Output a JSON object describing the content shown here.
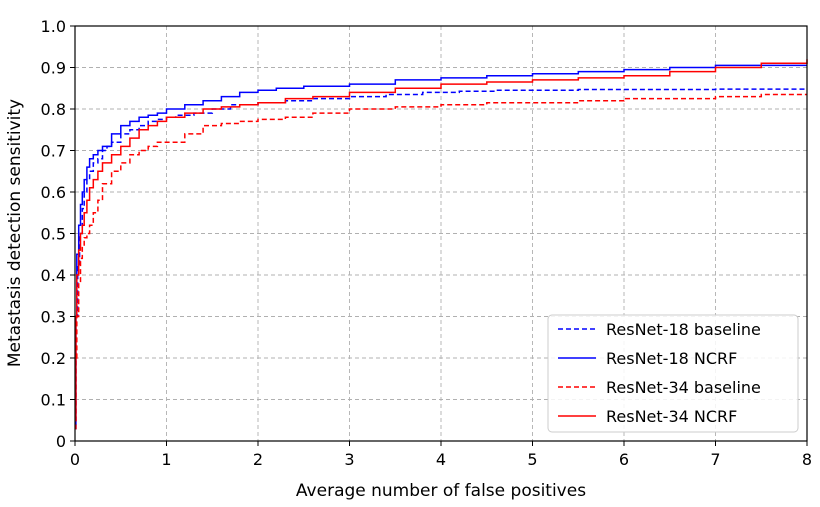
{
  "chart_data": {
    "type": "line",
    "title": "",
    "xlabel": "Average number of false positives",
    "ylabel": "Metastasis detection sensitivity",
    "xlim": [
      0,
      8
    ],
    "ylim": [
      0,
      1.0
    ],
    "xticks": [
      0,
      1,
      2,
      3,
      4,
      5,
      6,
      7,
      8
    ],
    "xtick_labels": [
      "0",
      "1",
      "2",
      "3",
      "4",
      "5",
      "6",
      "7",
      "8"
    ],
    "yticks": [
      0,
      0.1,
      0.2,
      0.3,
      0.4,
      0.5,
      0.6,
      0.7,
      0.8,
      0.9,
      1.0
    ],
    "ytick_labels": [
      "0",
      "0.1",
      "0.2",
      "0.3",
      "0.4",
      "0.5",
      "0.6",
      "0.7",
      "0.8",
      "0.9",
      "1.0"
    ],
    "grid": true,
    "legend_position": "lower-right",
    "series": [
      {
        "name": "ResNet-18 baseline",
        "color": "#0000ff",
        "style": "dashed",
        "x": [
          0,
          0.01,
          0.03,
          0.05,
          0.08,
          0.1,
          0.13,
          0.16,
          0.2,
          0.25,
          0.3,
          0.35,
          0.4,
          0.5,
          0.6,
          0.7,
          0.8,
          0.9,
          1.0,
          1.1,
          1.3,
          1.5,
          1.7,
          2.0,
          2.3,
          2.6,
          3.0,
          3.4,
          3.8,
          4.2,
          4.6,
          5.0,
          5.5,
          6.0,
          6.5,
          7.0,
          7.5,
          8.0
        ],
        "y": [
          0.03,
          0.3,
          0.42,
          0.5,
          0.56,
          0.6,
          0.63,
          0.65,
          0.67,
          0.68,
          0.7,
          0.71,
          0.72,
          0.74,
          0.75,
          0.76,
          0.77,
          0.775,
          0.78,
          0.785,
          0.79,
          0.8,
          0.81,
          0.815,
          0.82,
          0.825,
          0.83,
          0.835,
          0.84,
          0.843,
          0.845,
          0.845,
          0.847,
          0.847,
          0.847,
          0.848,
          0.848,
          0.848
        ]
      },
      {
        "name": "ResNet-18 NCRF",
        "color": "#0000ff",
        "style": "solid",
        "x": [
          0,
          0.01,
          0.02,
          0.04,
          0.06,
          0.08,
          0.1,
          0.13,
          0.16,
          0.2,
          0.25,
          0.3,
          0.4,
          0.5,
          0.6,
          0.7,
          0.8,
          0.9,
          1.0,
          1.2,
          1.4,
          1.6,
          1.8,
          2.0,
          2.2,
          2.5,
          3.0,
          3.5,
          4.0,
          4.5,
          5.0,
          5.5,
          6.0,
          6.5,
          7.0,
          7.5,
          8.0
        ],
        "y": [
          0.04,
          0.3,
          0.45,
          0.52,
          0.57,
          0.6,
          0.63,
          0.66,
          0.68,
          0.69,
          0.7,
          0.71,
          0.74,
          0.76,
          0.77,
          0.78,
          0.785,
          0.79,
          0.8,
          0.81,
          0.82,
          0.83,
          0.84,
          0.845,
          0.85,
          0.855,
          0.86,
          0.87,
          0.875,
          0.88,
          0.885,
          0.89,
          0.895,
          0.9,
          0.905,
          0.905,
          0.905
        ]
      },
      {
        "name": "ResNet-34 baseline",
        "color": "#ff0000",
        "style": "dashed",
        "x": [
          0,
          0.01,
          0.02,
          0.04,
          0.06,
          0.08,
          0.1,
          0.13,
          0.16,
          0.2,
          0.25,
          0.3,
          0.4,
          0.5,
          0.6,
          0.7,
          0.8,
          0.9,
          1.0,
          1.2,
          1.4,
          1.6,
          1.8,
          2.0,
          2.3,
          2.6,
          3.0,
          3.5,
          4.0,
          4.5,
          5.0,
          5.5,
          6.0,
          6.5,
          7.0,
          7.5,
          8.0
        ],
        "y": [
          0.03,
          0.2,
          0.3,
          0.38,
          0.44,
          0.47,
          0.49,
          0.5,
          0.52,
          0.55,
          0.58,
          0.62,
          0.65,
          0.67,
          0.69,
          0.7,
          0.71,
          0.72,
          0.72,
          0.74,
          0.76,
          0.765,
          0.77,
          0.775,
          0.78,
          0.79,
          0.8,
          0.805,
          0.81,
          0.815,
          0.815,
          0.82,
          0.825,
          0.825,
          0.83,
          0.835,
          0.835
        ]
      },
      {
        "name": "ResNet-34 NCRF",
        "color": "#ff0000",
        "style": "solid",
        "x": [
          0,
          0.01,
          0.02,
          0.04,
          0.06,
          0.08,
          0.1,
          0.13,
          0.16,
          0.2,
          0.25,
          0.3,
          0.4,
          0.5,
          0.6,
          0.7,
          0.8,
          0.9,
          1.0,
          1.2,
          1.4,
          1.6,
          1.8,
          2.0,
          2.3,
          2.6,
          3.0,
          3.5,
          4.0,
          4.5,
          5.0,
          5.5,
          6.0,
          6.5,
          7.0,
          7.5,
          8.0
        ],
        "y": [
          0.05,
          0.3,
          0.4,
          0.46,
          0.5,
          0.52,
          0.55,
          0.58,
          0.61,
          0.63,
          0.65,
          0.67,
          0.69,
          0.71,
          0.73,
          0.75,
          0.76,
          0.77,
          0.78,
          0.79,
          0.8,
          0.805,
          0.81,
          0.815,
          0.825,
          0.83,
          0.84,
          0.85,
          0.86,
          0.865,
          0.87,
          0.875,
          0.88,
          0.89,
          0.9,
          0.91,
          0.92
        ]
      }
    ]
  }
}
